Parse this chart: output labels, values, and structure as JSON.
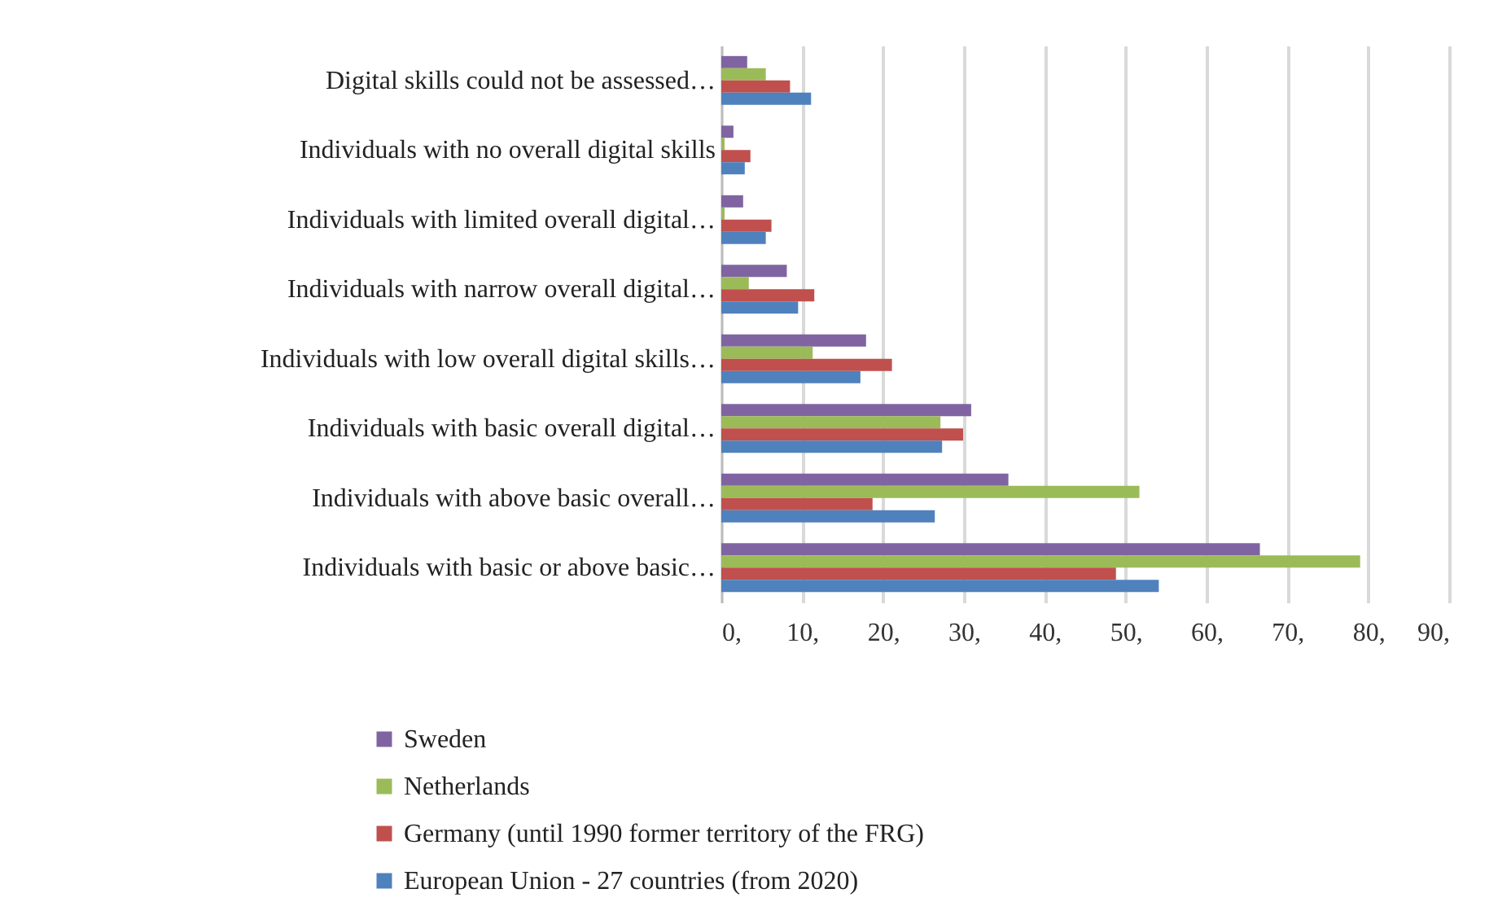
{
  "chart_data": {
    "type": "bar",
    "orientation": "horizontal",
    "categories": [
      "Digital skills could not be assessed…",
      "Individuals with no overall digital skills",
      "Individuals with limited overall digital…",
      "Individuals with narrow overall digital…",
      "Individuals with low overall digital skills…",
      "Individuals with basic overall digital…",
      "Individuals with above basic overall…",
      "Individuals with basic or above basic…"
    ],
    "series": [
      {
        "name": "Sweden",
        "color": "#8064a2",
        "values": [
          3.2,
          1.5,
          2.7,
          8.1,
          17.9,
          30.9,
          35.5,
          66.6
        ]
      },
      {
        "name": "Netherlands",
        "color": "#9bbb59",
        "values": [
          5.5,
          0.4,
          0.4,
          3.4,
          11.3,
          27.1,
          51.7,
          79.0
        ]
      },
      {
        "name": "Germany (until 1990 former territory of the FRG)",
        "color": "#c0504d",
        "values": [
          8.5,
          3.6,
          6.2,
          11.5,
          21.1,
          29.9,
          18.7,
          48.8
        ]
      },
      {
        "name": "European Union - 27 countries (from 2020)",
        "color": "#4f81bd",
        "values": [
          11.1,
          2.9,
          5.5,
          9.5,
          17.2,
          27.3,
          26.4,
          54.1
        ]
      }
    ],
    "xlim": [
      0,
      90
    ],
    "xticks": [
      {
        "value": 0,
        "label": "0,"
      },
      {
        "value": 10,
        "label": "10,"
      },
      {
        "value": 20,
        "label": "20,"
      },
      {
        "value": 30,
        "label": "30,"
      },
      {
        "value": 40,
        "label": "40,"
      },
      {
        "value": 50,
        "label": "50,"
      },
      {
        "value": 60,
        "label": "60,"
      },
      {
        "value": 70,
        "label": "70,"
      },
      {
        "value": 80,
        "label": "80,"
      },
      {
        "value": 90,
        "label": "90,"
      }
    ],
    "grid": "x",
    "legend": "bottom"
  }
}
